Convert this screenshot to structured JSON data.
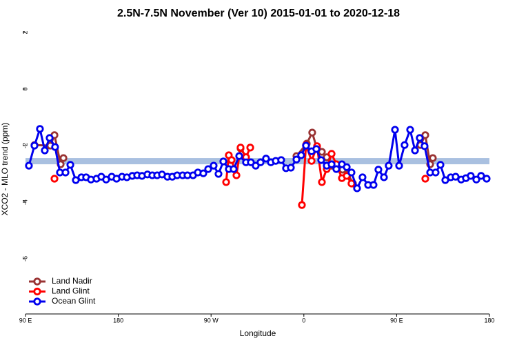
{
  "chart_data": {
    "type": "line",
    "title": "2.5N-7.5N November (Ver 10)   2015-01-01 to 2020-12-18",
    "x_label": "Longitude",
    "y_label": "XCO2 - MLO trend (ppm)",
    "xlim": [
      90,
      540
    ],
    "xticks": [
      {
        "value": 90,
        "label": "90 E"
      },
      180,
      {
        "value": 270,
        "label": "90 W"
      },
      {
        "value": 360,
        "label": "0"
      },
      {
        "value": 450,
        "label": "90 E"
      },
      {
        "value": 540,
        "label": "180"
      }
    ],
    "ylim": [
      -7.95,
      2.2
    ],
    "yticks": [
      2,
      0,
      -2,
      -4,
      -6
    ],
    "reference_band": [
      -2.66,
      -2.44
    ],
    "band_color": "#a9c0e0",
    "legend": "bottom-left",
    "series": [
      {
        "name": "Land Nadir",
        "color": "#993333",
        "x": [
          98.7,
          114.1,
          118.1,
          124.1,
          126.8,
          null,
          298.6,
          303.9,
          null,
          352.8,
          362.8,
          368.1,
          372.8,
          377.5,
          382.2,
          386.9,
          392.2,
          397.6,
          402.9,
          407.6,
          null,
          473.1,
          477.8,
          482.5,
          485.1
        ],
        "values": [
          -1.98,
          -2.0,
          -1.63,
          -2.66,
          -2.44,
          null,
          -2.1,
          -2.41,
          null,
          -2.37,
          -1.93,
          -1.54,
          -2.12,
          -2.22,
          -2.41,
          -2.71,
          -2.71,
          -2.85,
          -3.0,
          -3.34,
          null,
          -1.98,
          -1.63,
          -2.66,
          -2.44
        ]
      },
      {
        "name": "Land Glint",
        "color": "#ff0000",
        "x": [
          118.1,
          null,
          284.6,
          287.2,
          289.9,
          294.6,
          298.6,
          303.9,
          308.0,
          null,
          358.1,
          362.1,
          367.5,
          372.8,
          377.5,
          382.2,
          386.9,
          391.5,
          396.9,
          401.6,
          406.2,
          null,
          477.8
        ],
        "values": [
          -3.17,
          null,
          -3.29,
          -2.34,
          -2.51,
          -3.05,
          -2.07,
          -2.41,
          -2.07,
          null,
          -4.1,
          -1.98,
          -2.54,
          -2.02,
          -3.29,
          -2.83,
          -2.29,
          -2.66,
          -3.15,
          -3.07,
          -3.34,
          null,
          -3.17
        ]
      },
      {
        "name": "Ocean Glint",
        "color": "#0000ee",
        "x": [
          93.3,
          98.7,
          104.0,
          108.7,
          113.4,
          118.7,
          123.4,
          128.8,
          133.5,
          138.8,
          144.2,
          148.8,
          153.5,
          158.9,
          163.5,
          168.2,
          173.6,
          178.3,
          183.6,
          188.3,
          193.6,
          198.3,
          203.0,
          208.3,
          213.0,
          217.7,
          222.4,
          227.7,
          232.4,
          237.1,
          242.4,
          247.1,
          252.5,
          257.2,
          262.5,
          267.2,
          272.5,
          277.2,
          281.9,
          287.2,
          291.9,
          297.3,
          303.9,
          308.6,
          313.3,
          318.0,
          323.3,
          328.0,
          332.7,
          338.0,
          342.7,
          347.4,
          352.8,
          357.4,
          362.1,
          367.5,
          372.1,
          376.8,
          382.2,
          386.9,
          391.5,
          396.9,
          401.6,
          406.2,
          411.6,
          416.9,
          422.3,
          427.6,
          432.3,
          437.7,
          442.3,
          448.4,
          452.4,
          457.7,
          463.1,
          467.8,
          472.4,
          477.1,
          482.5,
          487.8,
          492.5,
          497.2,
          502.5,
          507.2,
          512.6,
          517.2,
          521.9,
          527.3,
          531.9,
          537.3
        ],
        "values": [
          -2.71,
          -2.0,
          -1.41,
          -2.17,
          -1.73,
          -2.05,
          -2.95,
          -2.95,
          -2.68,
          -3.22,
          -3.12,
          -3.12,
          -3.2,
          -3.17,
          -3.1,
          -3.2,
          -3.1,
          -3.17,
          -3.1,
          -3.12,
          -3.07,
          -3.05,
          -3.07,
          -3.02,
          -3.05,
          -3.05,
          -3.02,
          -3.1,
          -3.1,
          -3.05,
          -3.05,
          -3.05,
          -3.05,
          -2.95,
          -2.98,
          -2.83,
          -2.71,
          -3.0,
          -2.56,
          -2.83,
          -2.83,
          -2.37,
          -2.59,
          -2.59,
          -2.71,
          -2.59,
          -2.46,
          -2.59,
          -2.54,
          -2.51,
          -2.8,
          -2.78,
          -2.49,
          -2.34,
          -2.0,
          -2.2,
          -2.12,
          -2.51,
          -2.71,
          -2.66,
          -2.83,
          -2.66,
          -2.76,
          -2.95,
          -3.51,
          -3.12,
          -3.39,
          -3.39,
          -2.85,
          -3.12,
          -2.71,
          -1.44,
          -2.71,
          -1.98,
          -1.44,
          -2.17,
          -1.73,
          -2.02,
          -2.95,
          -2.95,
          -2.68,
          -3.22,
          -3.12,
          -3.1,
          -3.2,
          -3.15,
          -3.07,
          -3.2,
          -3.07,
          -3.17
        ]
      }
    ]
  }
}
